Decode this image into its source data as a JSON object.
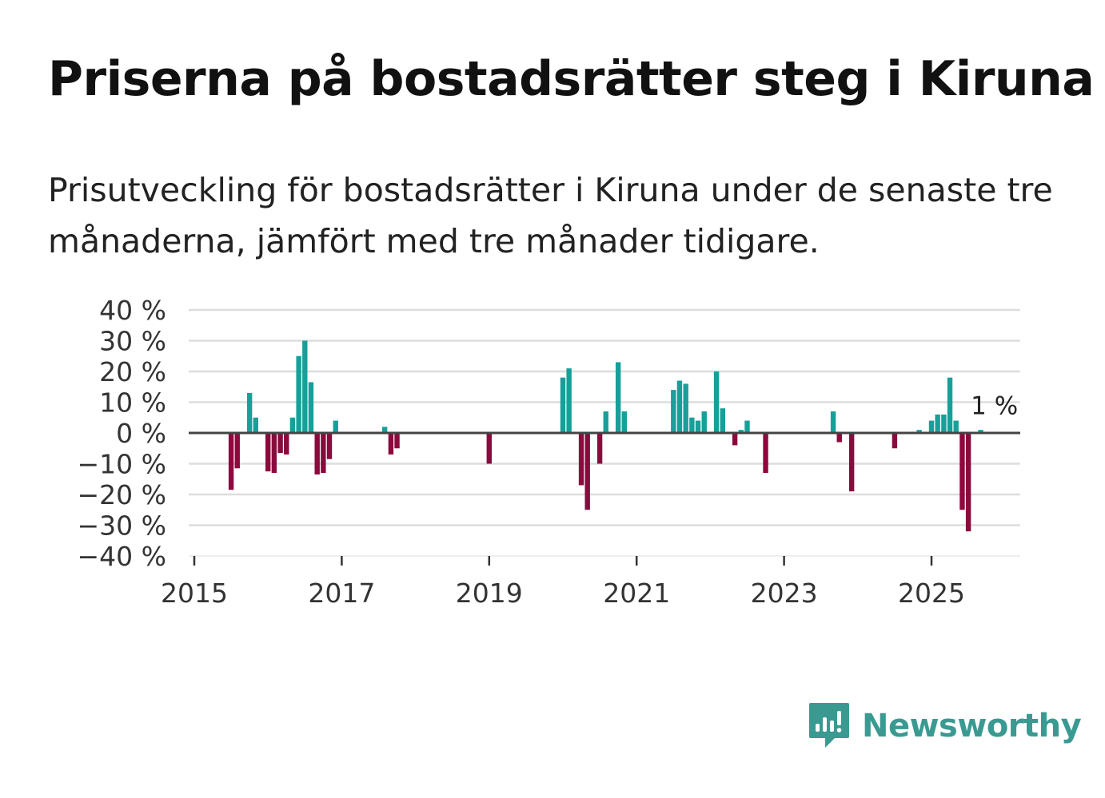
{
  "title": "Priserna på bostadsrätter steg i Kiruna",
  "subtitle": "Prisutveckling för bostadsrätter i Kiruna under de senaste tre månaderna, jämfört med tre månader tidigare.",
  "brand": {
    "name": "Newsworthy",
    "icon": "newsworthy-logo-icon",
    "color": "#3a9a92"
  },
  "chart_data": {
    "type": "bar",
    "title": "",
    "xlabel": "",
    "ylabel": "",
    "ylim": [
      -40,
      40
    ],
    "xlim": [
      2015,
      2026.2
    ],
    "grid": true,
    "y_ticks": [
      40,
      30,
      20,
      10,
      0,
      -10,
      -20,
      -30,
      -40
    ],
    "y_tick_labels": [
      "40 %",
      "30 %",
      "20 %",
      "10 %",
      "0 %",
      "−10 %",
      "−20 %",
      "−30 %",
      "−40 %"
    ],
    "x_ticks": [
      2015,
      2017,
      2019,
      2021,
      2023,
      2025
    ],
    "x_tick_labels": [
      "2015",
      "2017",
      "2019",
      "2021",
      "2023",
      "2025"
    ],
    "colors": {
      "positive": "#17a09a",
      "negative": "#8b0a3e",
      "grid": "#dddddd",
      "zero_line": "#444444"
    },
    "annotation": {
      "text": "1 %",
      "x": 2025.75,
      "y": 1
    },
    "series": [
      {
        "name": "Prisutveckling",
        "values": [
          {
            "x": 2015.5,
            "y": -18.5
          },
          {
            "x": 2015.583,
            "y": -11.5
          },
          {
            "x": 2015.75,
            "y": 13
          },
          {
            "x": 2015.833,
            "y": 5
          },
          {
            "x": 2016.0,
            "y": -12.5
          },
          {
            "x": 2016.083,
            "y": -13
          },
          {
            "x": 2016.167,
            "y": -6.5
          },
          {
            "x": 2016.25,
            "y": -7
          },
          {
            "x": 2016.333,
            "y": 5
          },
          {
            "x": 2016.417,
            "y": 25
          },
          {
            "x": 2016.5,
            "y": 30
          },
          {
            "x": 2016.583,
            "y": 16.5
          },
          {
            "x": 2016.667,
            "y": -13.5
          },
          {
            "x": 2016.75,
            "y": -13
          },
          {
            "x": 2016.833,
            "y": -8.5
          },
          {
            "x": 2016.917,
            "y": 4
          },
          {
            "x": 2017.583,
            "y": 2
          },
          {
            "x": 2017.667,
            "y": -7
          },
          {
            "x": 2017.75,
            "y": -5
          },
          {
            "x": 2019.0,
            "y": -10
          },
          {
            "x": 2020.0,
            "y": 18
          },
          {
            "x": 2020.083,
            "y": 21
          },
          {
            "x": 2020.25,
            "y": -17
          },
          {
            "x": 2020.333,
            "y": -25
          },
          {
            "x": 2020.5,
            "y": -10
          },
          {
            "x": 2020.583,
            "y": 7
          },
          {
            "x": 2020.75,
            "y": 23
          },
          {
            "x": 2020.833,
            "y": 7
          },
          {
            "x": 2021.5,
            "y": 14
          },
          {
            "x": 2021.583,
            "y": 17
          },
          {
            "x": 2021.667,
            "y": 16
          },
          {
            "x": 2021.75,
            "y": 5
          },
          {
            "x": 2021.833,
            "y": 4
          },
          {
            "x": 2021.917,
            "y": 7
          },
          {
            "x": 2022.083,
            "y": 20
          },
          {
            "x": 2022.167,
            "y": 8
          },
          {
            "x": 2022.333,
            "y": -4
          },
          {
            "x": 2022.417,
            "y": 1
          },
          {
            "x": 2022.5,
            "y": 4
          },
          {
            "x": 2022.75,
            "y": -13
          },
          {
            "x": 2023.667,
            "y": 7
          },
          {
            "x": 2023.75,
            "y": -3
          },
          {
            "x": 2023.917,
            "y": -19
          },
          {
            "x": 2024.5,
            "y": -5
          },
          {
            "x": 2024.833,
            "y": 1
          },
          {
            "x": 2025.0,
            "y": 4
          },
          {
            "x": 2025.083,
            "y": 6
          },
          {
            "x": 2025.167,
            "y": 6
          },
          {
            "x": 2025.25,
            "y": 18
          },
          {
            "x": 2025.333,
            "y": 4
          },
          {
            "x": 2025.417,
            "y": -25
          },
          {
            "x": 2025.5,
            "y": -32
          },
          {
            "x": 2025.667,
            "y": 1
          }
        ]
      }
    ]
  }
}
